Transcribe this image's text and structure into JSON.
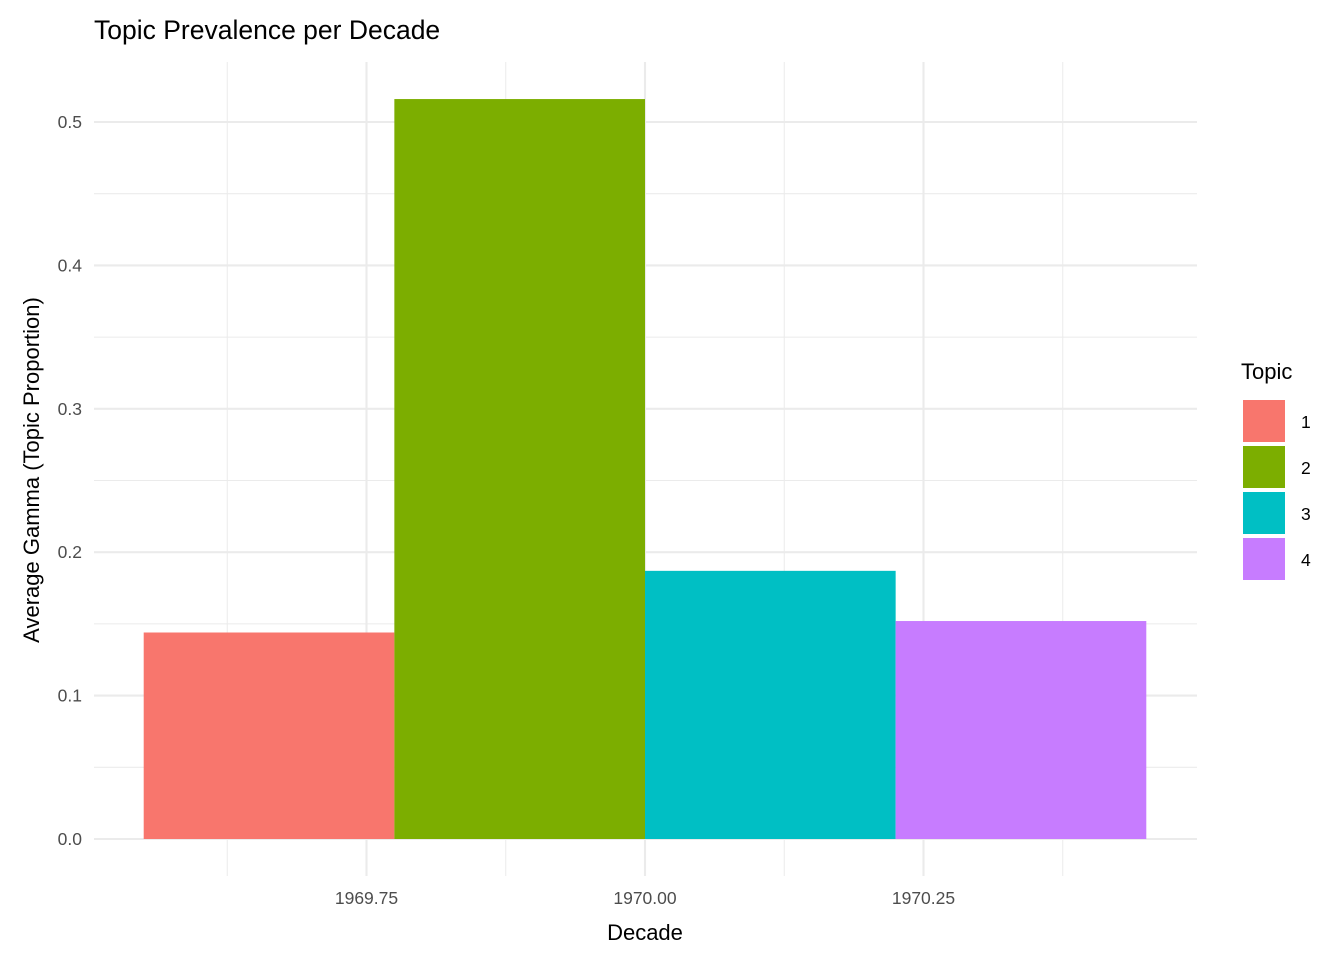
{
  "chart_data": {
    "type": "bar",
    "title": "Topic Prevalence per Decade",
    "xlabel": "Decade",
    "ylabel": "Average Gamma (Topic Proportion)",
    "x_ticks": [
      "1969.75",
      "1970.00",
      "1970.25"
    ],
    "x_tick_values": [
      1969.75,
      1970.0,
      1970.25
    ],
    "xlim": [
      1969.5,
      1970.5
    ],
    "y_ticks": [
      "0.0",
      "0.1",
      "0.2",
      "0.3",
      "0.4",
      "0.5"
    ],
    "y_tick_values": [
      0.0,
      0.1,
      0.2,
      0.3,
      0.4,
      0.5
    ],
    "ylim": [
      0,
      0.5
    ],
    "grid": true,
    "position": "dodge",
    "bars": [
      {
        "decade": 1970,
        "topic": "1",
        "value": 0.144,
        "color": "#F8766D"
      },
      {
        "decade": 1970,
        "topic": "2",
        "value": 0.516,
        "color": "#7CAE00"
      },
      {
        "decade": 1970,
        "topic": "3",
        "value": 0.187,
        "color": "#00BFC4"
      },
      {
        "decade": 1970,
        "topic": "4",
        "value": 0.152,
        "color": "#C77CFF"
      }
    ],
    "legend": {
      "title": "Topic",
      "placement": "right",
      "entries": [
        {
          "label": "1",
          "color": "#F8766D"
        },
        {
          "label": "2",
          "color": "#7CAE00"
        },
        {
          "label": "3",
          "color": "#00BFC4"
        },
        {
          "label": "4",
          "color": "#C77CFF"
        }
      ]
    }
  }
}
